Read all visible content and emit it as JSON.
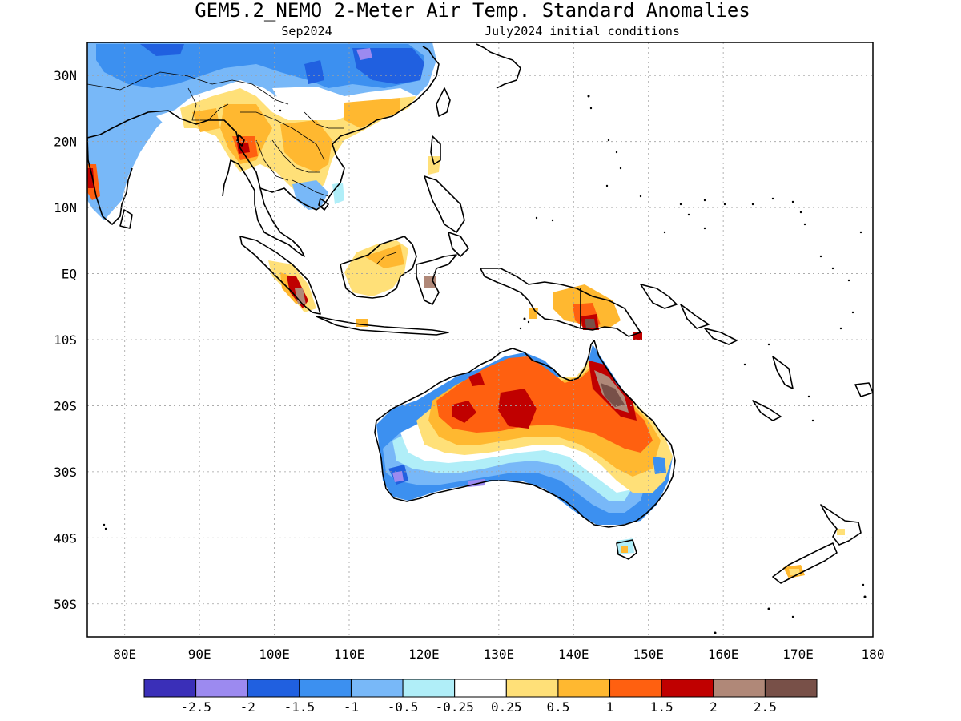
{
  "title": "GEM5.2_NEMO 2-Meter Air Temp. Standard Anomalies",
  "subtitle_left": "Sep2024",
  "subtitle_right": "July2024 initial conditions",
  "map": {
    "lon_range": [
      75,
      180
    ],
    "lat_range": [
      -55,
      35
    ],
    "lon_ticks": [
      {
        "value": 80,
        "label": "80E"
      },
      {
        "value": 90,
        "label": "90E"
      },
      {
        "value": 100,
        "label": "100E"
      },
      {
        "value": 110,
        "label": "110E"
      },
      {
        "value": 120,
        "label": "120E"
      },
      {
        "value": 130,
        "label": "130E"
      },
      {
        "value": 140,
        "label": "140E"
      },
      {
        "value": 150,
        "label": "150E"
      },
      {
        "value": 160,
        "label": "160E"
      },
      {
        "value": 170,
        "label": "170E"
      },
      {
        "value": 180,
        "label": "180"
      }
    ],
    "lat_ticks": [
      {
        "value": 30,
        "label": "30N"
      },
      {
        "value": 20,
        "label": "20N"
      },
      {
        "value": 10,
        "label": "10N"
      },
      {
        "value": 0,
        "label": "EQ"
      },
      {
        "value": -10,
        "label": "10S"
      },
      {
        "value": -20,
        "label": "20S"
      },
      {
        "value": -30,
        "label": "30S"
      },
      {
        "value": -40,
        "label": "40S"
      },
      {
        "value": -50,
        "label": "50S"
      }
    ],
    "grid": "dotted"
  },
  "legend": {
    "colors": [
      "#3a2fb8",
      "#9c8af0",
      "#2060e0",
      "#3c90f0",
      "#78b8f8",
      "#b0eef8",
      "#ffffff",
      "#ffe078",
      "#ffb830",
      "#ff6010",
      "#c00000",
      "#b08878",
      "#785048"
    ],
    "labels": [
      "-2.5",
      "-2",
      "-1.5",
      "-1",
      "-0.5",
      "-0.25",
      "0.25",
      "0.5",
      "1",
      "1.5",
      "2",
      "2.5"
    ]
  },
  "colors": {
    "anomaly_neg_strong": "#3a2fb8",
    "anomaly_neg": "#3c90f0",
    "anomaly_neg_weak": "#78b8f8",
    "anomaly_neg_faint": "#b0eef8",
    "anomaly_pos_faint": "#ffe078",
    "anomaly_pos": "#ffb830",
    "anomaly_pos_strong": "#ff6010",
    "anomaly_pos_vstrong": "#c00000",
    "anomaly_pos_extreme": "#b08878",
    "anomaly_pos_max": "#785048"
  }
}
